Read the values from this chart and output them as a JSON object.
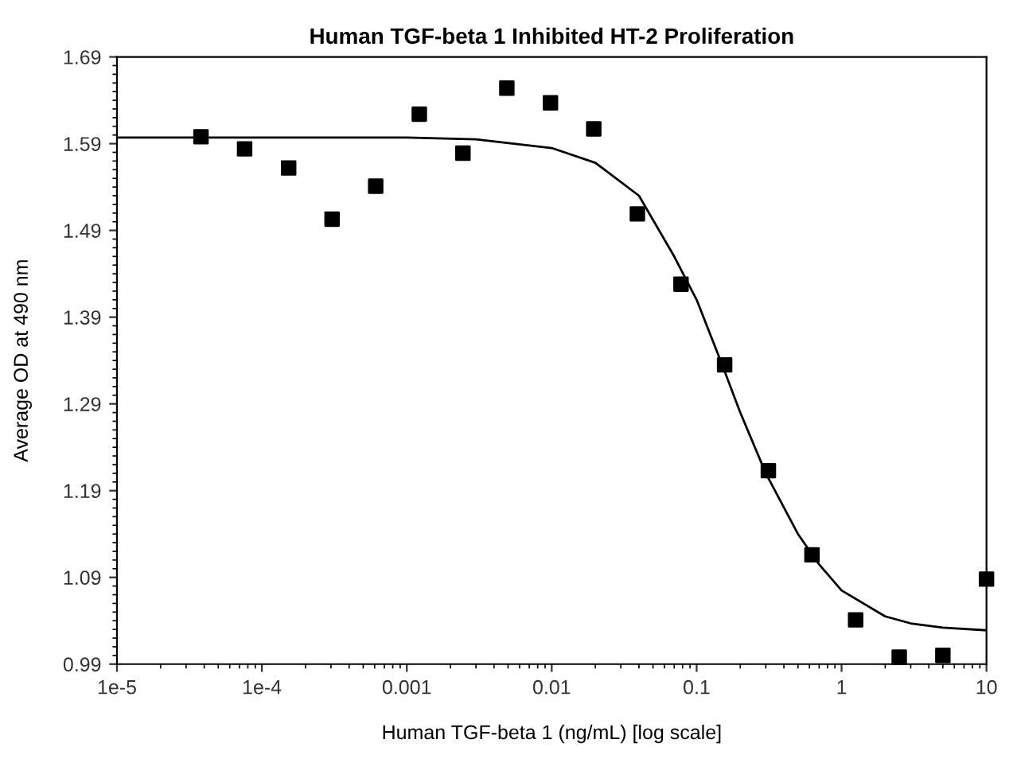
{
  "chart_data": {
    "type": "scatter",
    "title": "Human TGF-beta 1 Inhibited HT-2 Proliferation",
    "xlabel": "Human TGF-beta 1 (ng/mL) [log scale]",
    "ylabel": "Average OD at 490 nm",
    "log": "x",
    "xlim": [
      1e-05,
      10
    ],
    "ylim": [
      0.99,
      1.69
    ],
    "xticks": [
      {
        "value": 1e-05,
        "label": "1e-5"
      },
      {
        "value": 0.0001,
        "label": "1e-4"
      },
      0.001,
      0.01,
      0.1,
      1,
      10
    ],
    "yticks": [
      0.99,
      1.09,
      1.19,
      1.29,
      1.39,
      1.49,
      1.59,
      1.69
    ],
    "grid": false,
    "legend": false,
    "series": [
      {
        "marker": "square",
        "color": "#000000",
        "x": [
          3.8e-05,
          7.6e-05,
          0.000153,
          0.000305,
          0.00061,
          0.00122,
          0.00244,
          0.0049,
          0.0098,
          0.0195,
          0.039,
          0.078,
          0.156,
          0.3125,
          0.625,
          1.25,
          2.5,
          5,
          10
        ],
        "values": [
          1.598,
          1.584,
          1.562,
          1.503,
          1.541,
          1.624,
          1.579,
          1.654,
          1.637,
          1.607,
          1.509,
          1.428,
          1.335,
          1.213,
          1.116,
          1.041,
          0.998,
          1.0,
          1.088
        ]
      },
      {
        "type": "line",
        "marker": "none",
        "color": "#000000",
        "line_style": "solid",
        "x": [
          1e-05,
          0.001,
          0.003,
          0.01,
          0.02,
          0.04,
          0.07,
          0.1,
          0.15,
          0.2,
          0.3,
          0.5,
          0.7,
          1,
          2,
          3,
          5,
          10
        ],
        "values": [
          1.597,
          1.597,
          1.595,
          1.585,
          1.568,
          1.53,
          1.46,
          1.41,
          1.335,
          1.28,
          1.21,
          1.14,
          1.105,
          1.075,
          1.045,
          1.037,
          1.032,
          1.029
        ]
      }
    ]
  }
}
